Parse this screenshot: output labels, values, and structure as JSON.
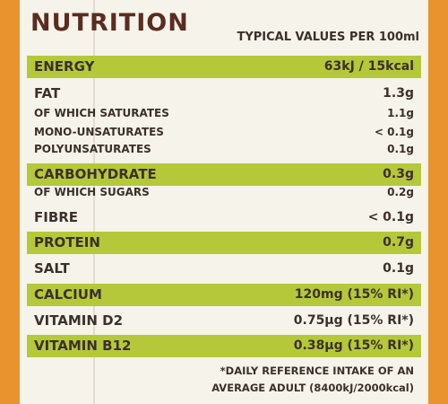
{
  "title": "NUTRITION",
  "subtitle": "TYPICAL VALUES PER 100ml",
  "rows": [
    {
      "label": "ENERGY",
      "value": "63kJ / 15kcal",
      "highlight": true
    },
    {
      "label": "FAT",
      "value": "1.3g"
    },
    {
      "label": "OF WHICH SATURATES",
      "value": "1.1g",
      "sub": true
    },
    {
      "label": "MONO-UNSATURATES",
      "value": "< 0.1g",
      "sub": true
    },
    {
      "label": "POLYUNSATURATES",
      "value": "0.1g",
      "sub": true
    },
    {
      "label": "CARBOHYDRATE",
      "value": "0.3g",
      "highlight": true
    },
    {
      "label": "OF WHICH SUGARS",
      "value": "0.2g",
      "sub": true
    },
    {
      "label": "FIBRE",
      "value": "< 0.1g"
    },
    {
      "label": "PROTEIN",
      "value": "0.7g",
      "highlight": true
    },
    {
      "label": "SALT",
      "value": "0.1g"
    },
    {
      "label": "CALCIUM",
      "value": "120mg (15% RI*)",
      "highlight": true
    },
    {
      "label": "VITAMIN D2",
      "value": "0.75µg (15% RI*)"
    },
    {
      "label": "VITAMIN B12",
      "value": "0.38µg (15% RI*)",
      "highlight": true
    }
  ],
  "footnote": [
    "*DAILY REFERENCE INTAKE OF AN",
    "AVERAGE ADULT (8400kJ/2000kcal)"
  ]
}
